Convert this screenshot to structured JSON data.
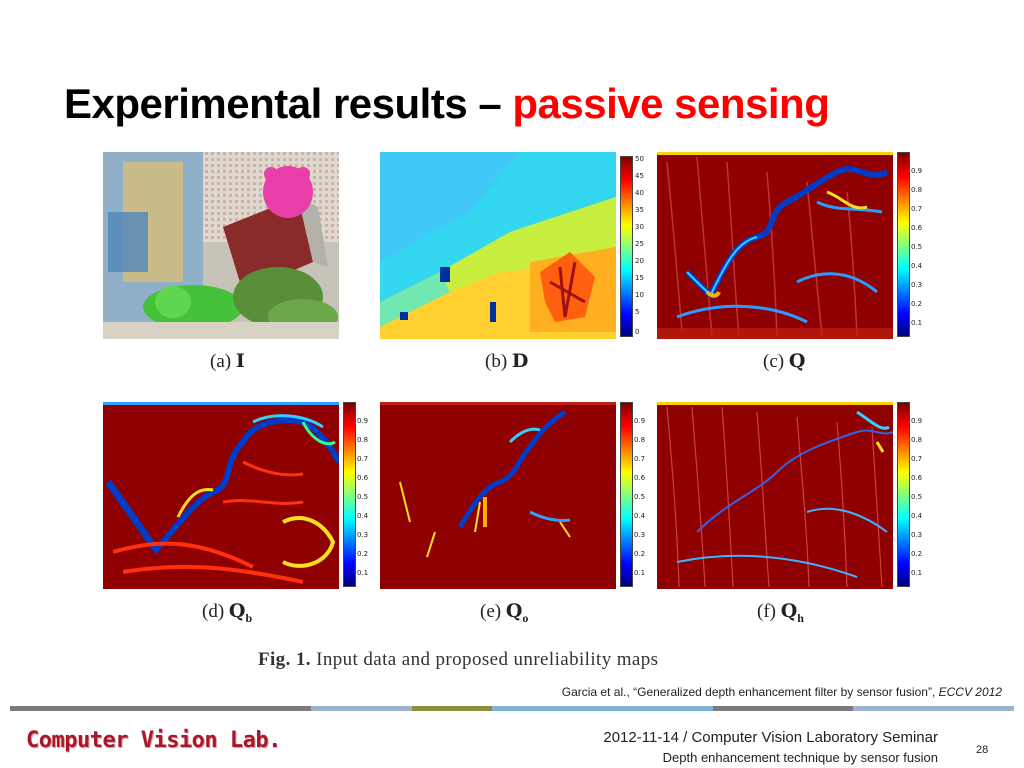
{
  "slide": {
    "title_main": "Experimental results – ",
    "title_accent": "passive sensing",
    "title_accent_color": "#ff0000"
  },
  "figure": {
    "panels": [
      {
        "id": "a",
        "label": "(a)",
        "symbol": "I",
        "subscript": "",
        "colorbar": []
      },
      {
        "id": "b",
        "label": "(b)",
        "symbol": "D",
        "subscript": "",
        "colorbar": [
          "50",
          "45",
          "40",
          "35",
          "30",
          "25",
          "20",
          "15",
          "10",
          "5",
          "0"
        ]
      },
      {
        "id": "c",
        "label": "(c)",
        "symbol": "Q",
        "subscript": "",
        "colorbar": [
          "0.9",
          "0.8",
          "0.7",
          "0.6",
          "0.5",
          "0.4",
          "0.3",
          "0.2",
          "0.1"
        ]
      },
      {
        "id": "d",
        "label": "(d)",
        "symbol": "Q",
        "subscript": "b",
        "colorbar": [
          "0.9",
          "0.8",
          "0.7",
          "0.6",
          "0.5",
          "0.4",
          "0.3",
          "0.2",
          "0.1"
        ]
      },
      {
        "id": "e",
        "label": "(e)",
        "symbol": "Q",
        "subscript": "o",
        "colorbar": [
          "0.9",
          "0.8",
          "0.7",
          "0.6",
          "0.5",
          "0.4",
          "0.3",
          "0.2",
          "0.1"
        ]
      },
      {
        "id": "f",
        "label": "(f)",
        "symbol": "Q",
        "subscript": "h",
        "colorbar": [
          "0.9",
          "0.8",
          "0.7",
          "0.6",
          "0.5",
          "0.4",
          "0.3",
          "0.2",
          "0.1"
        ]
      }
    ],
    "caption_label": "Fig. 1.",
    "caption_text": " Input data and proposed unreliability maps"
  },
  "citation": {
    "text": "Garcia et al., “Generalized depth enhancement filter by sensor fusion”, ",
    "venue": "ECCV 2012"
  },
  "footer": {
    "logo_text": "Computer Vision Lab.",
    "line1": "2012-11-14 / Computer Vision Laboratory Seminar",
    "line2": "Depth enhancement technique by sensor fusion",
    "page_number": "28",
    "bar_colors": [
      "#7b7b7b",
      "#9bb2d1",
      "#8d8d3b",
      "#7fb2d9",
      "#7b7b7b",
      "#9bb2d1"
    ]
  }
}
